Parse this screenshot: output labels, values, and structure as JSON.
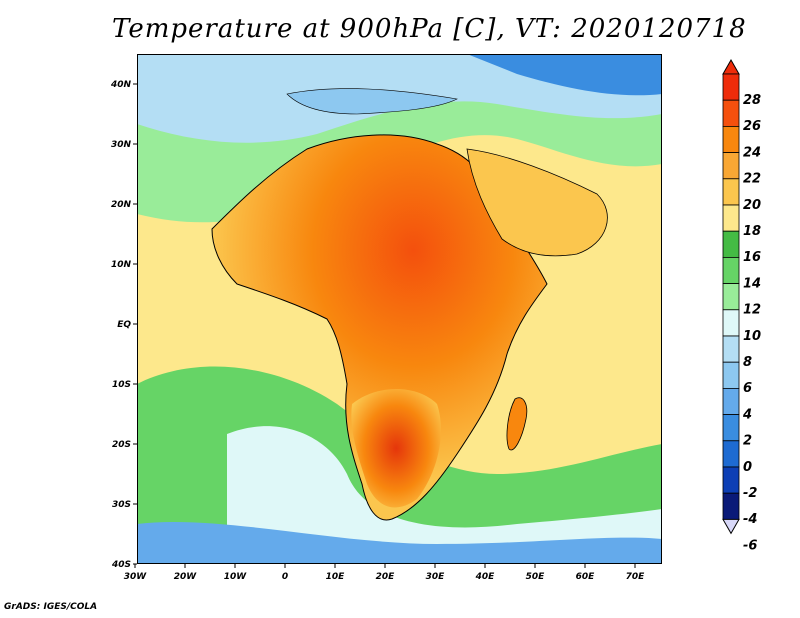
{
  "title": "Temperature at 900hPa [C], VT: 2020120718",
  "footer": "GrADS: IGES/COLA",
  "axes": {
    "lon_labels": [
      "30W",
      "20W",
      "10W",
      "0",
      "10E",
      "20E",
      "30E",
      "40E",
      "50E",
      "60E",
      "70E"
    ],
    "lat_labels": [
      "40N",
      "30N",
      "20N",
      "10N",
      "EQ",
      "10S",
      "20S",
      "30S",
      "40S"
    ]
  },
  "colorbar": {
    "labels": [
      "28",
      "26",
      "24",
      "22",
      "20",
      "18",
      "16",
      "14",
      "12",
      "10",
      "8",
      "6",
      "4",
      "2",
      "0",
      "-2",
      "-4",
      "-6"
    ],
    "colors": [
      "#ee2c0a",
      "#f5500d",
      "#f8870e",
      "#f9a734",
      "#fbc64e",
      "#fde88c",
      "#44bb44",
      "#66d466",
      "#99ec99",
      "#dff8f8",
      "#b4def4",
      "#8dc8f0",
      "#64aaeb",
      "#3a8de0",
      "#1e6bd2",
      "#0d3fb5",
      "#0a1a78",
      "#d8d8f8"
    ]
  }
}
